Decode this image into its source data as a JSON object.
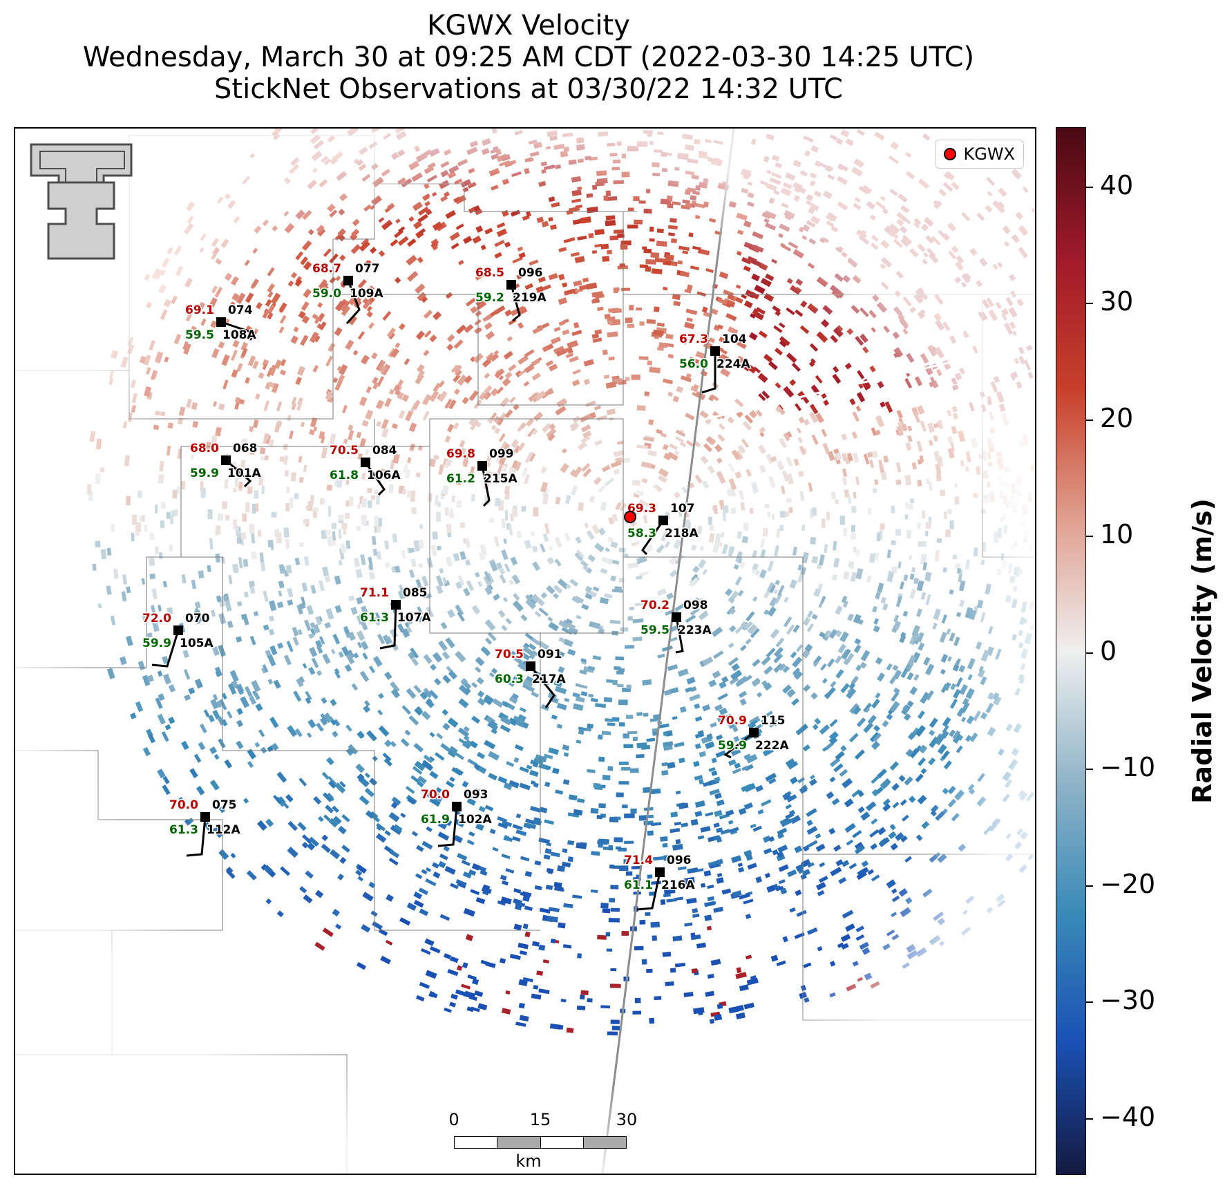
{
  "title": {
    "line1": "KGWX Velocity",
    "line2": "Wednesday, March 30 at 09:25 AM CDT (2022-03-30 14:25 UTC)",
    "line3": "StickNet Observations at 03/30/22 14:32 UTC"
  },
  "legend": {
    "label": "KGWX",
    "marker_color": "#ff0000"
  },
  "radar": {
    "name": "KGWX"
  },
  "scale_bar": {
    "ticks": [
      "0",
      "15",
      "30"
    ],
    "unit": "km"
  },
  "colorbar": {
    "label": "Radial Velocity (m/s)",
    "ticks": [
      "40",
      "30",
      "20",
      "10",
      "0",
      "−10",
      "−20",
      "−30",
      "−40"
    ],
    "range": [
      -45,
      45
    ],
    "colors": {
      "positive_max": "#4a0a14",
      "positive_high": "#a01a2a",
      "positive_mid": "#c8402a",
      "positive_low": "#e0a090",
      "zero": "#efefef",
      "negative_low": "#90b4c8",
      "negative_mid": "#3a8ab8",
      "negative_high": "#1a50b4",
      "negative_max": "#141a40"
    }
  },
  "label_colors": {
    "temperature": "#b80000",
    "dewpoint": "#006400",
    "station": "#000000"
  },
  "stations": [
    {
      "temp": "68.7",
      "dew": "59.0",
      "id": "109A",
      "wind_dir": "077"
    },
    {
      "temp": "69.1",
      "dew": "59.5",
      "id": "108A",
      "wind_dir": "074"
    },
    {
      "temp": "68.5",
      "dew": "59.2",
      "id": "219A",
      "wind_dir": "096"
    },
    {
      "temp": "67.3",
      "dew": "56.0",
      "id": "224A",
      "wind_dir": "104"
    },
    {
      "temp": "68.0",
      "dew": "59.9",
      "id": "101A",
      "wind_dir": "068"
    },
    {
      "temp": "70.5",
      "dew": "61.8",
      "id": "106A",
      "wind_dir": "084"
    },
    {
      "temp": "69.8",
      "dew": "61.2",
      "id": "215A",
      "wind_dir": "099"
    },
    {
      "temp": "69.3",
      "dew": "58.3",
      "id": "218A",
      "wind_dir": "107"
    },
    {
      "temp": "71.1",
      "dew": "61.3",
      "id": "107A",
      "wind_dir": "085"
    },
    {
      "temp": "72.0",
      "dew": "59.9",
      "id": "105A",
      "wind_dir": "070"
    },
    {
      "temp": "70.2",
      "dew": "59.5",
      "id": "223A",
      "wind_dir": "098"
    },
    {
      "temp": "70.5",
      "dew": "60.3",
      "id": "217A",
      "wind_dir": "091"
    },
    {
      "temp": "70.9",
      "dew": "59.9",
      "id": "222A",
      "wind_dir": "115"
    },
    {
      "temp": "70.0",
      "dew": "61.9",
      "id": "102A",
      "wind_dir": "093"
    },
    {
      "temp": "70.0",
      "dew": "61.3",
      "id": "112A",
      "wind_dir": "075"
    },
    {
      "temp": "71.4",
      "dew": "61.1",
      "id": "216A",
      "wind_dir": "096"
    }
  ]
}
